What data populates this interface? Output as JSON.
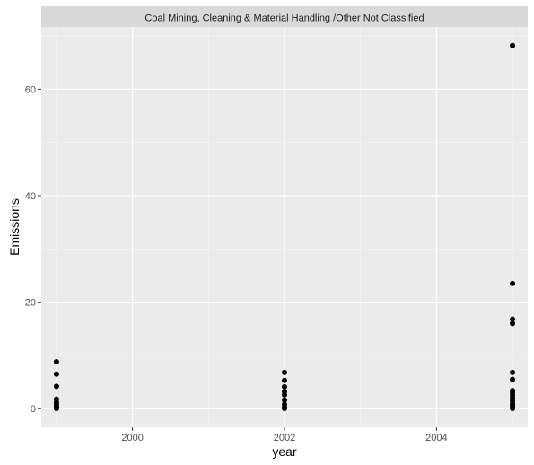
{
  "chart_data": {
    "type": "scatter",
    "facet_title": "Coal Mining, Cleaning & Material Handling /Other Not Classified",
    "xlabel": "year",
    "ylabel": "Emissions",
    "xlim": [
      1998.8,
      2005.2
    ],
    "ylim": [
      -3.5,
      71.7
    ],
    "x_ticks": [
      2000,
      2002,
      2004
    ],
    "x_tick_labels": [
      "2000",
      "2002",
      "2004"
    ],
    "y_ticks": [
      0,
      20,
      40,
      60
    ],
    "y_tick_labels": [
      "0",
      "20",
      "40",
      "60"
    ],
    "grid": true,
    "legend": "none",
    "colors": {
      "panel_background": "#ebebeb",
      "strip_background": "#d9d9d9",
      "grid_major": "#ffffff",
      "point": "#000000"
    },
    "series": [
      {
        "x": [
          1999,
          1999,
          1999,
          1999,
          1999,
          1999,
          1999,
          1999,
          1999,
          2002,
          2002,
          2002,
          2002,
          2002,
          2002,
          2002,
          2002,
          2002,
          2005,
          2005,
          2005,
          2005,
          2005,
          2005,
          2005,
          2005,
          2005,
          2005,
          2005,
          2005,
          2005,
          2005,
          2005
        ],
        "y": [
          8.8,
          6.5,
          4.2,
          1.8,
          1.2,
          0.8,
          0.4,
          0.2,
          0.05,
          6.8,
          5.3,
          4.1,
          3.2,
          2.6,
          1.6,
          0.8,
          0.3,
          0.05,
          68.2,
          23.5,
          16.8,
          16.0,
          6.8,
          5.5,
          3.4,
          3.0,
          2.5,
          2.0,
          1.5,
          1.0,
          0.6,
          0.2,
          0.05
        ]
      }
    ]
  }
}
